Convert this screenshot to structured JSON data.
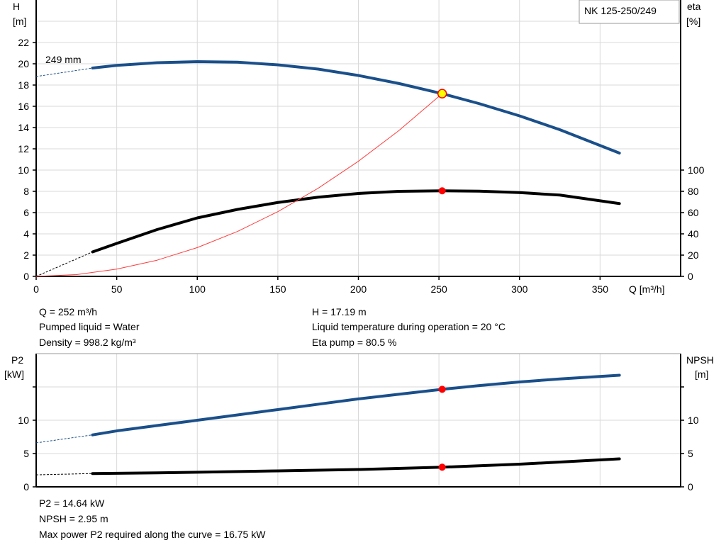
{
  "chart_data": [
    {
      "type": "line",
      "title": "NK 125-250/249",
      "xlabel": "Q [m³/h]",
      "ylabel": [
        "H",
        "[m]"
      ],
      "y2label": [
        "eta",
        "[%]"
      ],
      "xlim": [
        0,
        400
      ],
      "ylim": [
        0,
        26
      ],
      "y2lim": [
        0,
        260
      ],
      "grid": true,
      "xticks": [
        "0",
        "50",
        "100",
        "150",
        "200",
        "250",
        "300",
        "350"
      ],
      "yticks": [
        "0",
        "2",
        "4",
        "6",
        "8",
        "10",
        "12",
        "14",
        "16",
        "18",
        "20",
        "22"
      ],
      "y2ticks": [
        "0",
        "20",
        "40",
        "60",
        "80",
        "100"
      ],
      "curve_label": "249 mm",
      "series": [
        {
          "name": "249 mm",
          "axis": "H",
          "color": "#1a4f8a",
          "x": [
            35,
            50,
            75,
            100,
            125,
            150,
            175,
            200,
            225,
            252,
            275,
            300,
            325,
            362
          ],
          "y": [
            19.6,
            19.85,
            20.1,
            20.2,
            20.15,
            19.9,
            19.5,
            18.9,
            18.15,
            17.19,
            16.25,
            15.1,
            13.8,
            11.6
          ],
          "extrapolated": {
            "x": [
              0,
              35
            ],
            "y": [
              18.8,
              19.6
            ]
          }
        },
        {
          "axis": "eta",
          "color": "#000000",
          "x": [
            35,
            50,
            75,
            100,
            125,
            150,
            175,
            200,
            225,
            252,
            275,
            300,
            325,
            362
          ],
          "y": [
            23,
            31,
            44,
            55,
            63,
            69.5,
            74.5,
            78,
            80,
            80.5,
            80.2,
            78.8,
            76.5,
            68.5
          ],
          "extrapolated": {
            "x": [
              0,
              35
            ],
            "y": [
              0,
              23
            ]
          }
        },
        {
          "axis": "H",
          "color": "#ff3b3b",
          "role": "system-curve",
          "x": [
            0,
            25,
            50,
            75,
            100,
            125,
            150,
            175,
            200,
            225,
            252
          ],
          "y": [
            0,
            0.17,
            0.68,
            1.52,
            2.71,
            4.23,
            6.09,
            8.29,
            10.83,
            13.7,
            17.19
          ]
        }
      ],
      "operating_point": {
        "Q": 252,
        "H": 17.19,
        "eta": 80.5
      }
    },
    {
      "type": "line",
      "ylabel": [
        "P2",
        "[kW]"
      ],
      "y2label": [
        "NPSH",
        "[m]"
      ],
      "xlim": [
        0,
        400
      ],
      "ylim": [
        0,
        20
      ],
      "y2lim": [
        0,
        20
      ],
      "grid": true,
      "yticks": [
        "0",
        "5",
        "10",
        ""
      ],
      "y2ticks": [
        "0",
        "5",
        "10",
        ""
      ],
      "series": [
        {
          "axis": "P2",
          "color": "#1a4f8a",
          "x": [
            35,
            50,
            75,
            100,
            125,
            150,
            175,
            200,
            225,
            252,
            275,
            300,
            325,
            362
          ],
          "y": [
            7.8,
            8.4,
            9.2,
            10.0,
            10.8,
            11.6,
            12.4,
            13.2,
            13.9,
            14.64,
            15.2,
            15.75,
            16.2,
            16.75
          ],
          "extrapolated": {
            "x": [
              0,
              35
            ],
            "y": [
              6.6,
              7.8
            ]
          }
        },
        {
          "axis": "NPSH",
          "color": "#000000",
          "x": [
            35,
            75,
            100,
            150,
            200,
            252,
            300,
            362
          ],
          "y": [
            2.0,
            2.1,
            2.2,
            2.4,
            2.6,
            2.95,
            3.4,
            4.2
          ],
          "extrapolated": {
            "x": [
              0,
              35
            ],
            "y": [
              1.8,
              2.0
            ]
          }
        }
      ],
      "operating_point": {
        "Q": 252,
        "P2": 14.64,
        "NPSH": 2.95
      }
    }
  ],
  "info_top": {
    "q": "Q = 252 m³/h",
    "liquid": "Pumped liquid = Water",
    "density": "Density = 998.2 kg/m³",
    "h": "H = 17.19 m",
    "temp": "Liquid temperature during operation = 20 °C",
    "eta": "Eta pump = 80.5 %"
  },
  "info_bottom": {
    "p2": "P2 = 14.64 kW",
    "npsh": "NPSH = 2.95 m",
    "maxp2": "Max power P2 required along the curve = 16.75 kW"
  },
  "colors": {
    "duty_point": "#ff0000",
    "duty_point_h": "#ffff00",
    "system_curve": "#ff3b3b",
    "blue": "#1a4f8a"
  }
}
